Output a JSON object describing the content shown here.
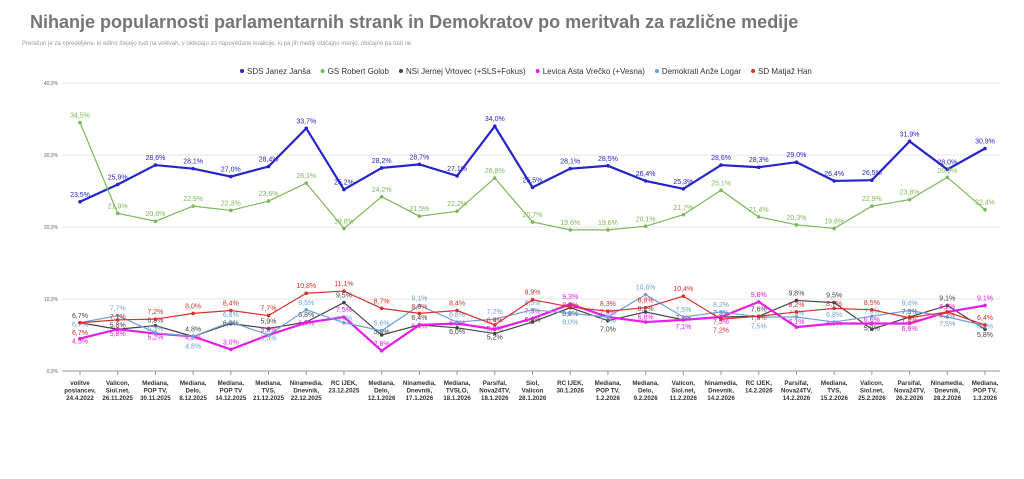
{
  "chart_data": {
    "type": "line",
    "title": "Nihanje popularnosti parlamentarnih strank in Demokratov po meritvah za različne medije",
    "subtitle": "Preračun je za opredeljene, ki edino štejejo tudi na volitvah, v oklepaju so napovedane koalicije, ki pa jih mediji običajno merijo, običajno pa tudi ne",
    "ylim": [
      0,
      40
    ],
    "yticks": [
      "0,0%",
      "10,0%",
      "20,0%",
      "30,0%",
      "40,0%"
    ],
    "grid": true,
    "legend_position": "top",
    "categories": [
      [
        "volitve",
        "poslancev,",
        "24.4.2022"
      ],
      [
        "Valicon,",
        "Siol.net,",
        "26.11.2025"
      ],
      [
        "Mediana,",
        "POP TV,",
        "30.11.2025"
      ],
      [
        "Mediana,",
        "Delo,",
        "8.12.2025"
      ],
      [
        "Mediana,",
        "POP TV",
        "14.12.2025"
      ],
      [
        "Mediana,",
        "TVS,",
        "21.12.2025"
      ],
      [
        "Ninamedia,",
        "Dnevnik,",
        "22.12.2025"
      ],
      [
        "RC IJEK,",
        "23.12.2025"
      ],
      [
        "Mediana,",
        "Delo,",
        "12.1.2026"
      ],
      [
        "Ninamedia,",
        "Dnevnik,",
        "17.1.2026"
      ],
      [
        "Mediana,",
        "TVSLO,",
        "18.1.2026"
      ],
      [
        "Parsifal,",
        "Nova24TV,",
        "18.1.2026"
      ],
      [
        "Siol,",
        "Valicon",
        "28.1.2026"
      ],
      [
        "RC IJEK,",
        "30.1.2026"
      ],
      [
        "Mediana,",
        "POP TV,",
        "1.2.2026"
      ],
      [
        "Mediana,",
        "Delo,",
        "9.2.2026"
      ],
      [
        "Valicon,",
        "Siol.net,",
        "11.2.2026"
      ],
      [
        "Ninamedia,",
        "Dnevnik,",
        "14.2.2026"
      ],
      [
        "RC IJEK,",
        "14.2.2026"
      ],
      [
        "Parsifal,",
        "Nova24TV,",
        "14.2.2026"
      ],
      [
        "Mediana,",
        "TVS,",
        "15.2.2026"
      ],
      [
        "Valicon,",
        "Siol.net,",
        "25.2.2026"
      ],
      [
        "Parsifal,",
        "Nova24TV,",
        "26.2.2026"
      ],
      [
        "Ninamedia,",
        "Dnevnik,",
        "28.2.2026"
      ],
      [
        "Mediana,",
        "POP TV,",
        "1.3.2026"
      ]
    ],
    "series": [
      {
        "name": "SDS Janez Janša",
        "color": "#2424c8",
        "width": 2.2,
        "values": [
          23.5,
          25.9,
          28.6,
          28.1,
          27.0,
          28.4,
          33.7,
          25.2,
          28.2,
          28.7,
          27.1,
          34.0,
          25.5,
          28.1,
          28.5,
          26.4,
          25.3,
          28.6,
          28.3,
          29.0,
          26.4,
          26.5,
          31.9,
          28.0,
          30.9
        ]
      },
      {
        "name": "GS Robert Golob",
        "color": "#7cb85a",
        "width": 1.2,
        "values": [
          34.5,
          21.9,
          20.8,
          22.9,
          22.3,
          23.6,
          26.1,
          19.8,
          24.2,
          21.5,
          22.2,
          26.8,
          20.7,
          19.6,
          19.6,
          20.1,
          21.7,
          25.1,
          21.4,
          20.3,
          19.8,
          22.9,
          23.8,
          26.9,
          22.4
        ]
      },
      {
        "name": "NSi Jernej Vrtovec (+SLS+Fokus)",
        "color": "#444444",
        "width": 1.2,
        "values": [
          6.7,
          5.8,
          6.3,
          4.8,
          6.6,
          5.9,
          6.8,
          9.5,
          5.0,
          6.4,
          6.0,
          5.2,
          6.8,
          8.8,
          7.0,
          8.2,
          7.1,
          7.5,
          7.6,
          9.8,
          9.5,
          5.8,
          7.5,
          9.1,
          5.8
        ]
      },
      {
        "name": "Levica Asta Vrečko (+Vesna)",
        "color": "#e61ee6",
        "width": 2.2,
        "values": [
          4.5,
          5.8,
          5.2,
          4.8,
          3.0,
          5.0,
          6.7,
          7.5,
          2.8,
          6.4,
          6.6,
          5.8,
          7.3,
          9.3,
          7.5,
          6.8,
          7.1,
          7.5,
          9.6,
          6.1,
          6.6,
          6.6,
          6.6,
          8.2,
          9.1
        ]
      },
      {
        "name": "Demokrati Anže Logar",
        "color": "#6fa0d8",
        "width": 1.2,
        "values": [
          6.7,
          7.7,
          5.3,
          4.8,
          6.8,
          5.0,
          8.5,
          6.7,
          5.6,
          9.1,
          6.8,
          7.2,
          8.5,
          8.0,
          7.5,
          10.6,
          7.5,
          8.2,
          7.5,
          7.5,
          6.8,
          7.6,
          8.4,
          7.5,
          6.3
        ]
      },
      {
        "name": "SD Matjaž Han",
        "color": "#d63030",
        "width": 1.2,
        "values": [
          6.7,
          7.1,
          7.2,
          8.0,
          8.4,
          7.7,
          10.8,
          11.1,
          8.7,
          8.0,
          8.4,
          6.4,
          9.9,
          8.9,
          8.3,
          8.8,
          10.4,
          7.2,
          7.6,
          8.2,
          8.7,
          8.5,
          7.4,
          8.2,
          6.4
        ]
      }
    ]
  }
}
